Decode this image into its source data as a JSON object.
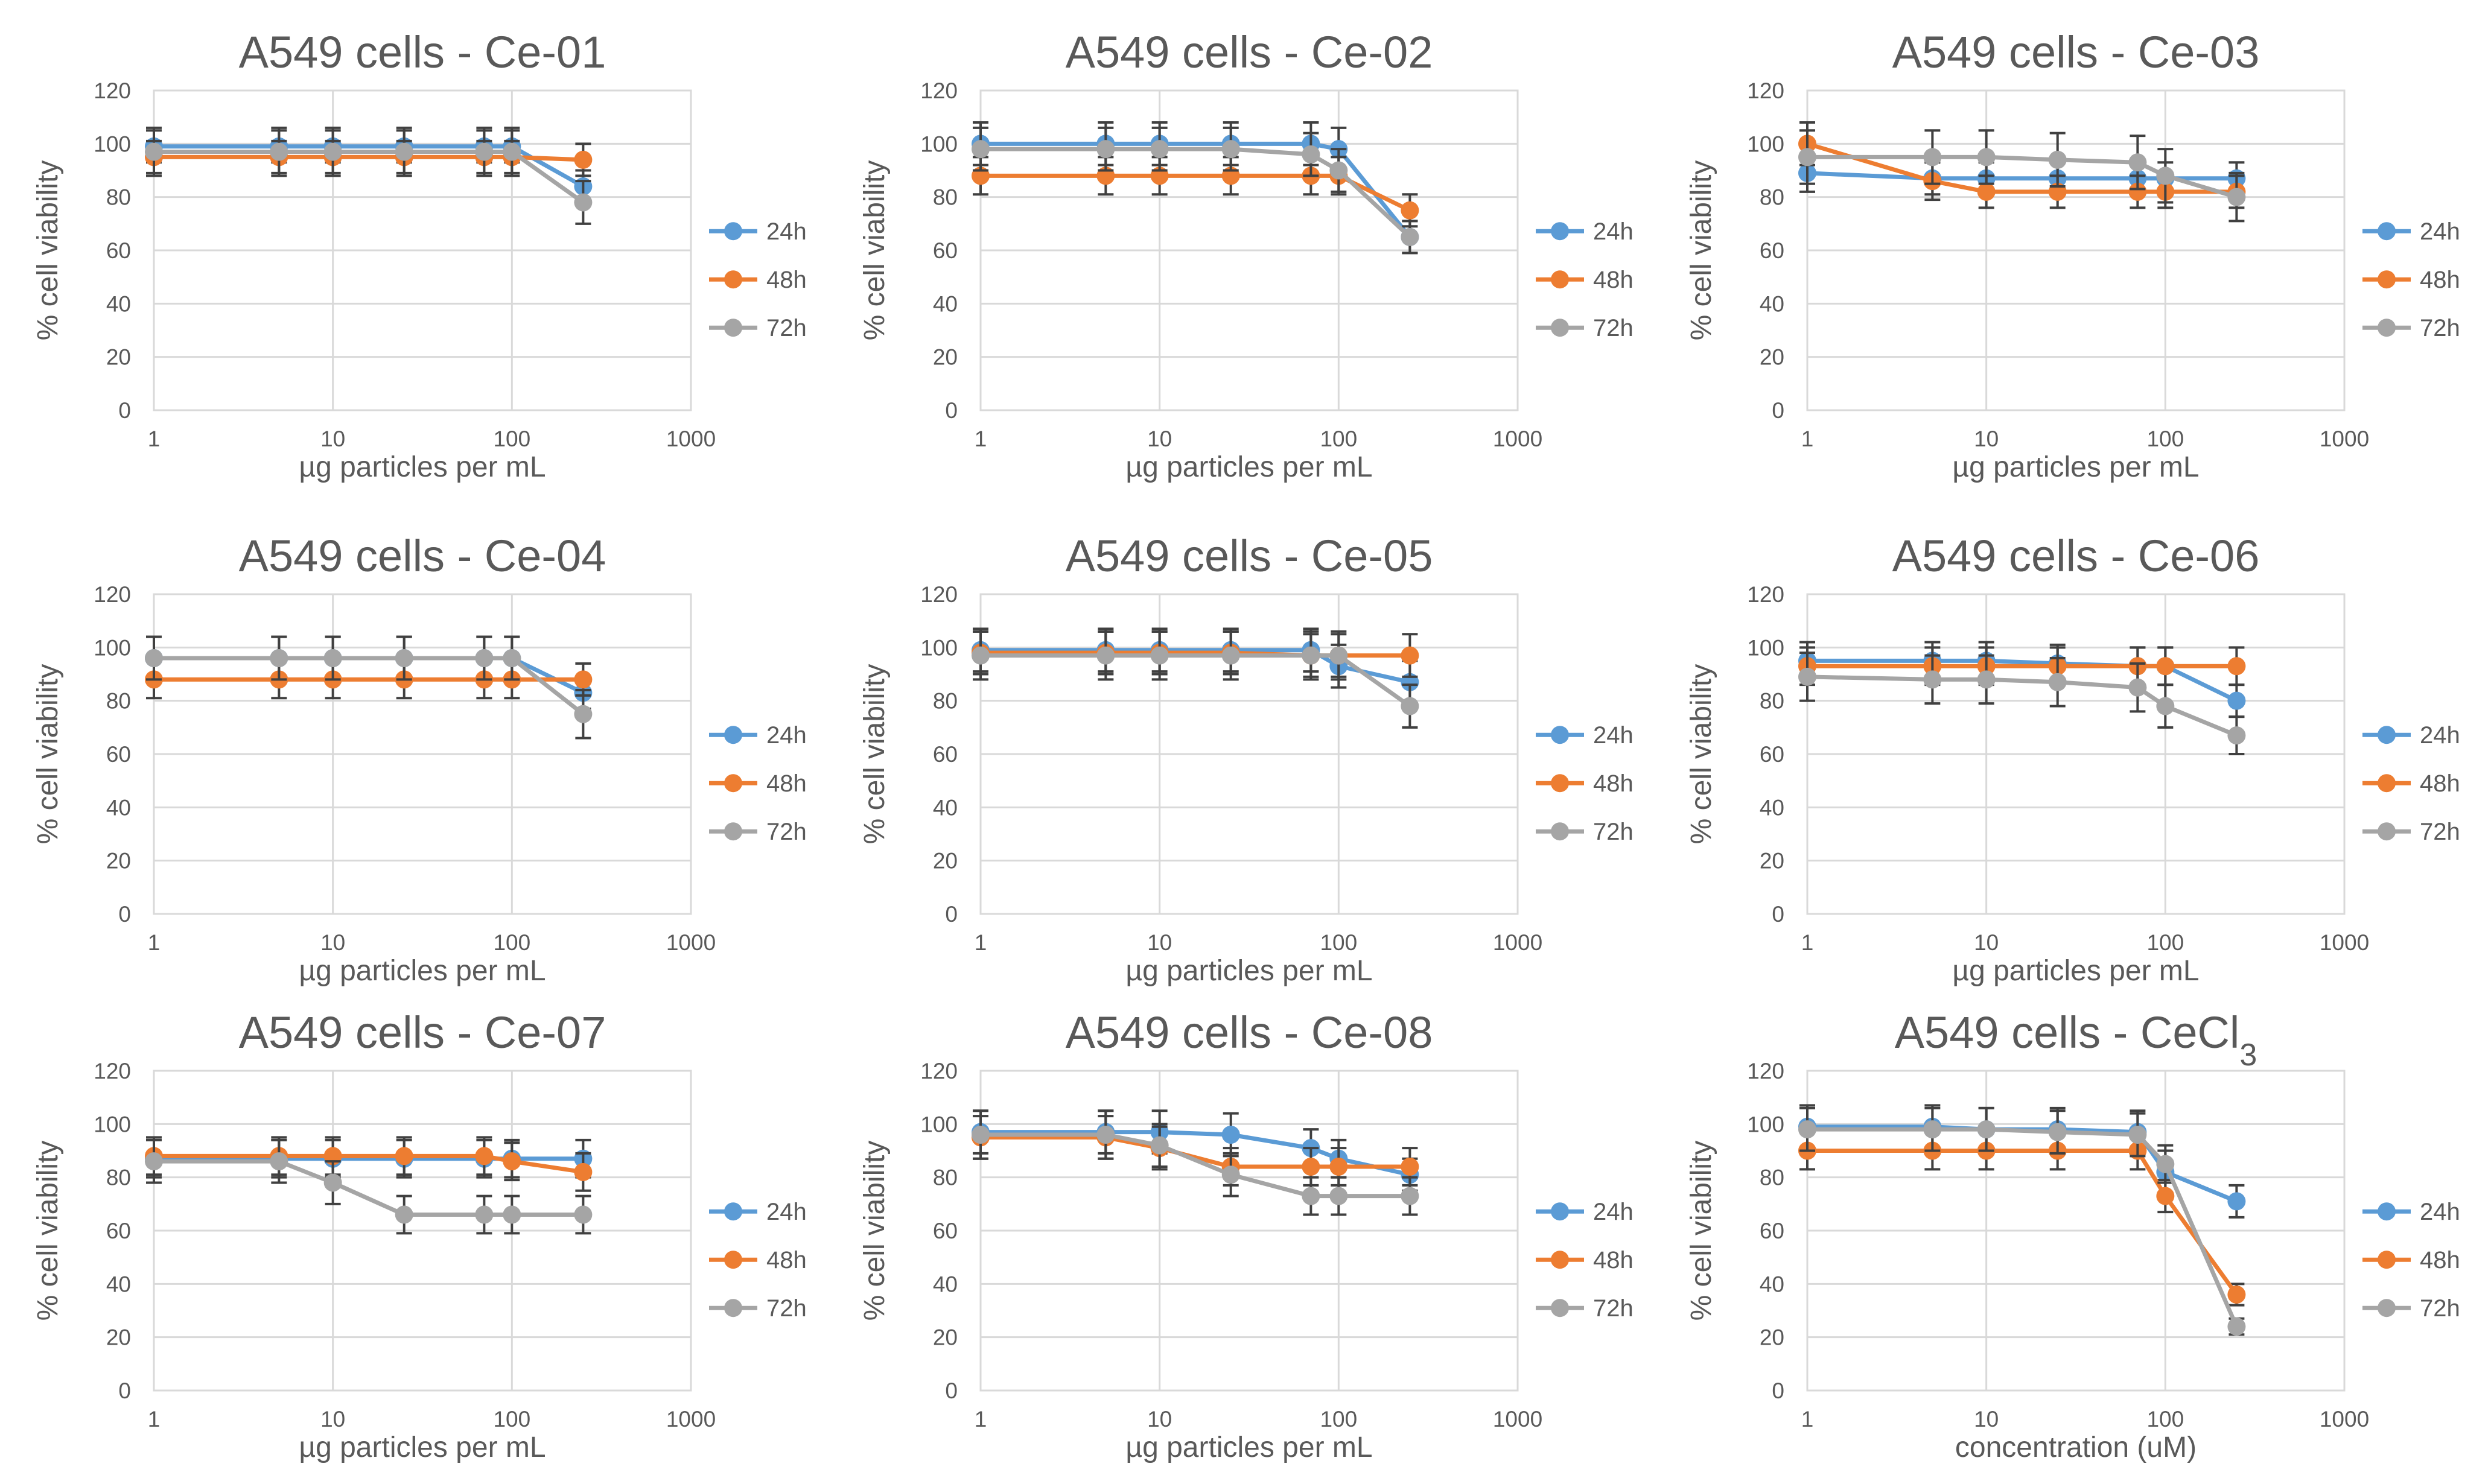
{
  "figure": {
    "yticks": [
      0,
      20,
      40,
      60,
      80,
      100,
      120
    ],
    "xticks": [
      1,
      10,
      100,
      1000
    ],
    "series_names": [
      "24h",
      "48h",
      "72h"
    ],
    "colors": {
      "24h": "#5b9bd5",
      "48h": "#ed7d31",
      "72h": "#a5a5a5",
      "error_bar": "#404040",
      "grid": "#d9d9d9",
      "plot_border": "#d9d9d9",
      "title": "#595959",
      "text": "#595959"
    }
  },
  "chart_data": [
    {
      "type": "line",
      "title": "A549 cells -  Ce-01",
      "xlabel": "µg particles per mL",
      "ylabel": "% cell viability",
      "xscale": "log",
      "xlim": [
        1,
        1000
      ],
      "ylim": [
        0,
        120
      ],
      "legend": "right",
      "x": [
        1,
        5,
        10,
        25,
        70,
        100,
        250
      ],
      "series": [
        {
          "name": "24h",
          "values": [
            99,
            99,
            99,
            99,
            99,
            99,
            84
          ],
          "errors": [
            6,
            6,
            6,
            6,
            6,
            6,
            6
          ]
        },
        {
          "name": "48h",
          "values": [
            95,
            95,
            95,
            95,
            95,
            95,
            94
          ],
          "errors": [
            6,
            6,
            6,
            6,
            6,
            6,
            6
          ]
        },
        {
          "name": "72h",
          "values": [
            97,
            97,
            97,
            97,
            97,
            97,
            78
          ],
          "errors": [
            9,
            9,
            9,
            9,
            9,
            9,
            8
          ]
        }
      ]
    },
    {
      "type": "line",
      "title": "A549 cells -  Ce-02",
      "xlabel": "µg particles per mL",
      "ylabel": "% cell viability",
      "xscale": "log",
      "xlim": [
        1,
        1000
      ],
      "ylim": [
        0,
        120
      ],
      "legend": "right",
      "x": [
        1,
        5,
        10,
        25,
        70,
        100,
        250
      ],
      "series": [
        {
          "name": "24h",
          "values": [
            100,
            100,
            100,
            100,
            100,
            98,
            65
          ],
          "errors": [
            8,
            8,
            8,
            8,
            8,
            8,
            6
          ]
        },
        {
          "name": "48h",
          "values": [
            88,
            88,
            88,
            88,
            88,
            88,
            75
          ],
          "errors": [
            7,
            7,
            7,
            7,
            7,
            7,
            6
          ]
        },
        {
          "name": "72h",
          "values": [
            98,
            98,
            98,
            98,
            96,
            90,
            65
          ],
          "errors": [
            8,
            8,
            8,
            8,
            8,
            8,
            6
          ]
        }
      ]
    },
    {
      "type": "line",
      "title": "A549 cells -  Ce-03",
      "xlabel": "µg particles per mL",
      "ylabel": "% cell viability",
      "xscale": "log",
      "xlim": [
        1,
        1000
      ],
      "ylim": [
        0,
        120
      ],
      "legend": "right",
      "x": [
        1,
        5,
        10,
        25,
        70,
        100,
        250
      ],
      "series": [
        {
          "name": "24h",
          "values": [
            89,
            87,
            87,
            87,
            87,
            87,
            87
          ],
          "errors": [
            7,
            6,
            6,
            6,
            6,
            6,
            6
          ]
        },
        {
          "name": "48h",
          "values": [
            100,
            86,
            82,
            82,
            82,
            82,
            82
          ],
          "errors": [
            8,
            7,
            6,
            6,
            6,
            6,
            6
          ]
        },
        {
          "name": "72h",
          "values": [
            95,
            95,
            95,
            94,
            93,
            88,
            80
          ],
          "errors": [
            10,
            10,
            10,
            10,
            10,
            10,
            9
          ]
        }
      ]
    },
    {
      "type": "line",
      "title": "A549 cells -  Ce-04",
      "xlabel": "µg particles per mL",
      "ylabel": "% cell viability",
      "xscale": "log",
      "xlim": [
        1,
        1000
      ],
      "ylim": [
        0,
        120
      ],
      "legend": "right",
      "x": [
        1,
        5,
        10,
        25,
        70,
        100,
        250
      ],
      "series": [
        {
          "name": "24h",
          "values": [
            96,
            96,
            96,
            96,
            96,
            96,
            83
          ],
          "errors": [
            8,
            8,
            8,
            8,
            8,
            8,
            6
          ]
        },
        {
          "name": "48h",
          "values": [
            88,
            88,
            88,
            88,
            88,
            88,
            88
          ],
          "errors": [
            7,
            7,
            7,
            7,
            7,
            7,
            6
          ]
        },
        {
          "name": "72h",
          "values": [
            96,
            96,
            96,
            96,
            96,
            96,
            75
          ],
          "errors": [
            8,
            8,
            8,
            8,
            8,
            8,
            9
          ]
        }
      ]
    },
    {
      "type": "line",
      "title": "A549 cells -  Ce-05",
      "xlabel": "µg particles per mL",
      "ylabel": "% cell viability",
      "xscale": "log",
      "xlim": [
        1,
        1000
      ],
      "ylim": [
        0,
        120
      ],
      "legend": "right",
      "x": [
        1,
        5,
        10,
        25,
        70,
        100,
        250
      ],
      "series": [
        {
          "name": "24h",
          "values": [
            99,
            99,
            99,
            99,
            99,
            93,
            87
          ],
          "errors": [
            8,
            8,
            8,
            8,
            8,
            8,
            8
          ]
        },
        {
          "name": "48h",
          "values": [
            98,
            98,
            98,
            98,
            97,
            97,
            97
          ],
          "errors": [
            8,
            8,
            8,
            8,
            8,
            8,
            8
          ]
        },
        {
          "name": "72h",
          "values": [
            97,
            97,
            97,
            97,
            97,
            97,
            78
          ],
          "errors": [
            9,
            9,
            9,
            9,
            9,
            9,
            8
          ]
        }
      ]
    },
    {
      "type": "line",
      "title": "A549 cells -  Ce-06",
      "xlabel": "µg particles per mL",
      "ylabel": "% cell viability",
      "xscale": "log",
      "xlim": [
        1,
        1000
      ],
      "ylim": [
        0,
        120
      ],
      "legend": "right",
      "x": [
        1,
        5,
        10,
        25,
        70,
        100,
        250
      ],
      "series": [
        {
          "name": "24h",
          "values": [
            95,
            95,
            95,
            94,
            93,
            93,
            80
          ],
          "errors": [
            7,
            7,
            7,
            7,
            7,
            7,
            6
          ]
        },
        {
          "name": "48h",
          "values": [
            93,
            93,
            93,
            93,
            93,
            93,
            93
          ],
          "errors": [
            7,
            7,
            7,
            7,
            7,
            7,
            7
          ]
        },
        {
          "name": "72h",
          "values": [
            89,
            88,
            88,
            87,
            85,
            78,
            67
          ],
          "errors": [
            9,
            9,
            9,
            9,
            9,
            8,
            7
          ]
        }
      ]
    },
    {
      "type": "line",
      "title": "A549 cells -  Ce-07",
      "xlabel": "µg particles per mL",
      "ylabel": "% cell viability",
      "xscale": "log",
      "xlim": [
        1,
        1000
      ],
      "ylim": [
        0,
        120
      ],
      "legend": "right",
      "x": [
        1,
        5,
        10,
        25,
        70,
        100,
        250
      ],
      "series": [
        {
          "name": "24h",
          "values": [
            87,
            87,
            87,
            87,
            87,
            87,
            87
          ],
          "errors": [
            7,
            7,
            7,
            7,
            7,
            7,
            7
          ]
        },
        {
          "name": "48h",
          "values": [
            88,
            88,
            88,
            88,
            88,
            86,
            82
          ],
          "errors": [
            7,
            7,
            7,
            7,
            7,
            7,
            7
          ]
        },
        {
          "name": "72h",
          "values": [
            86,
            86,
            78,
            66,
            66,
            66,
            66
          ],
          "errors": [
            8,
            8,
            8,
            7,
            7,
            7,
            7
          ]
        }
      ]
    },
    {
      "type": "line",
      "title": "A549 cells -  Ce-08",
      "xlabel": "µg particles per mL",
      "ylabel": "% cell viability",
      "xscale": "log",
      "xlim": [
        1,
        1000
      ],
      "ylim": [
        0,
        120
      ],
      "legend": "right",
      "x": [
        1,
        5,
        10,
        25,
        70,
        100,
        250
      ],
      "series": [
        {
          "name": "24h",
          "values": [
            97,
            97,
            97,
            96,
            91,
            87,
            81
          ],
          "errors": [
            8,
            8,
            8,
            8,
            7,
            7,
            6
          ]
        },
        {
          "name": "48h",
          "values": [
            95,
            95,
            91,
            84,
            84,
            84,
            84
          ],
          "errors": [
            8,
            8,
            8,
            7,
            7,
            7,
            7
          ]
        },
        {
          "name": "72h",
          "values": [
            96,
            96,
            92,
            81,
            73,
            73,
            73
          ],
          "errors": [
            9,
            9,
            8,
            8,
            7,
            7,
            7
          ]
        }
      ]
    },
    {
      "type": "line",
      "title": "A549 cells -  CeCl",
      "title_subscript": "3",
      "xlabel": "concentration (uM)",
      "ylabel": "% cell viability",
      "xscale": "log",
      "xlim": [
        1,
        1000
      ],
      "ylim": [
        0,
        120
      ],
      "legend": "right",
      "x": [
        1,
        5,
        10,
        25,
        70,
        100,
        250
      ],
      "series": [
        {
          "name": "24h",
          "values": [
            99,
            99,
            98,
            98,
            97,
            82,
            71
          ],
          "errors": [
            8,
            8,
            8,
            8,
            8,
            8,
            6
          ]
        },
        {
          "name": "48h",
          "values": [
            90,
            90,
            90,
            90,
            90,
            73,
            36
          ],
          "errors": [
            7,
            7,
            7,
            7,
            7,
            6,
            4
          ]
        },
        {
          "name": "72h",
          "values": [
            98,
            98,
            98,
            97,
            96,
            85,
            24
          ],
          "errors": [
            8,
            8,
            8,
            8,
            8,
            7,
            3
          ]
        }
      ]
    }
  ]
}
